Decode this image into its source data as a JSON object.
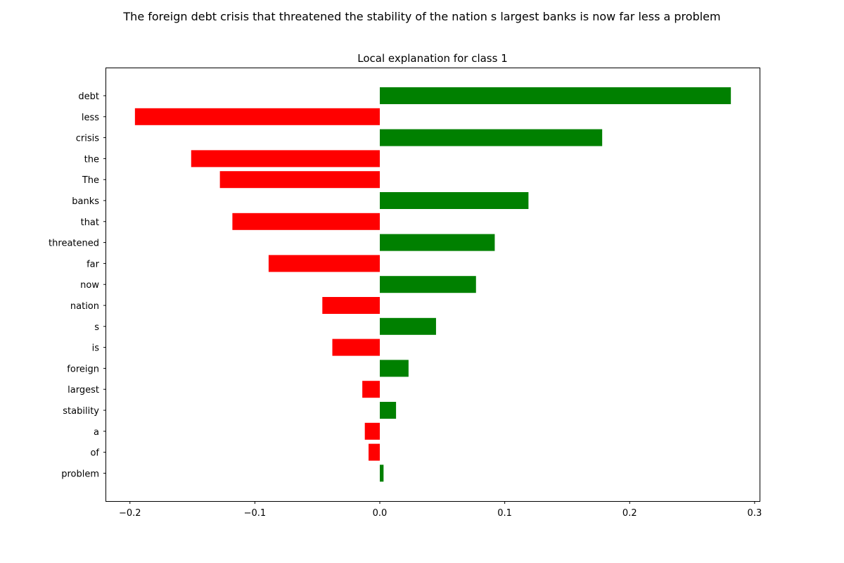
{
  "suptitle": "The foreign debt crisis that threatened the stability of the nation s largest banks is now far less a problem",
  "chart_data": {
    "type": "bar",
    "orientation": "horizontal",
    "title": "Local explanation for class 1",
    "xlabel": "",
    "ylabel": "",
    "categories": [
      "debt",
      "less",
      "crisis",
      "the",
      "The",
      "banks",
      "that",
      "threatened",
      "far",
      "now",
      "nation",
      "s",
      "is",
      "foreign",
      "largest",
      "stability",
      "a",
      "of",
      "problem"
    ],
    "values": [
      0.281,
      -0.196,
      0.178,
      -0.151,
      -0.128,
      0.119,
      -0.118,
      0.092,
      -0.089,
      0.077,
      -0.046,
      0.045,
      -0.038,
      0.023,
      -0.014,
      0.013,
      -0.012,
      -0.009,
      0.003
    ],
    "xlim": [
      -0.219,
      0.304
    ],
    "xticks": [
      -0.2,
      -0.1,
      0.0,
      0.1,
      0.2,
      0.3
    ],
    "xtick_labels": [
      "−0.2",
      "−0.1",
      "0.0",
      "0.1",
      "0.2",
      "0.3"
    ],
    "positive_color": "#008000",
    "negative_color": "#ff0000",
    "grid": false,
    "legend": "none"
  }
}
